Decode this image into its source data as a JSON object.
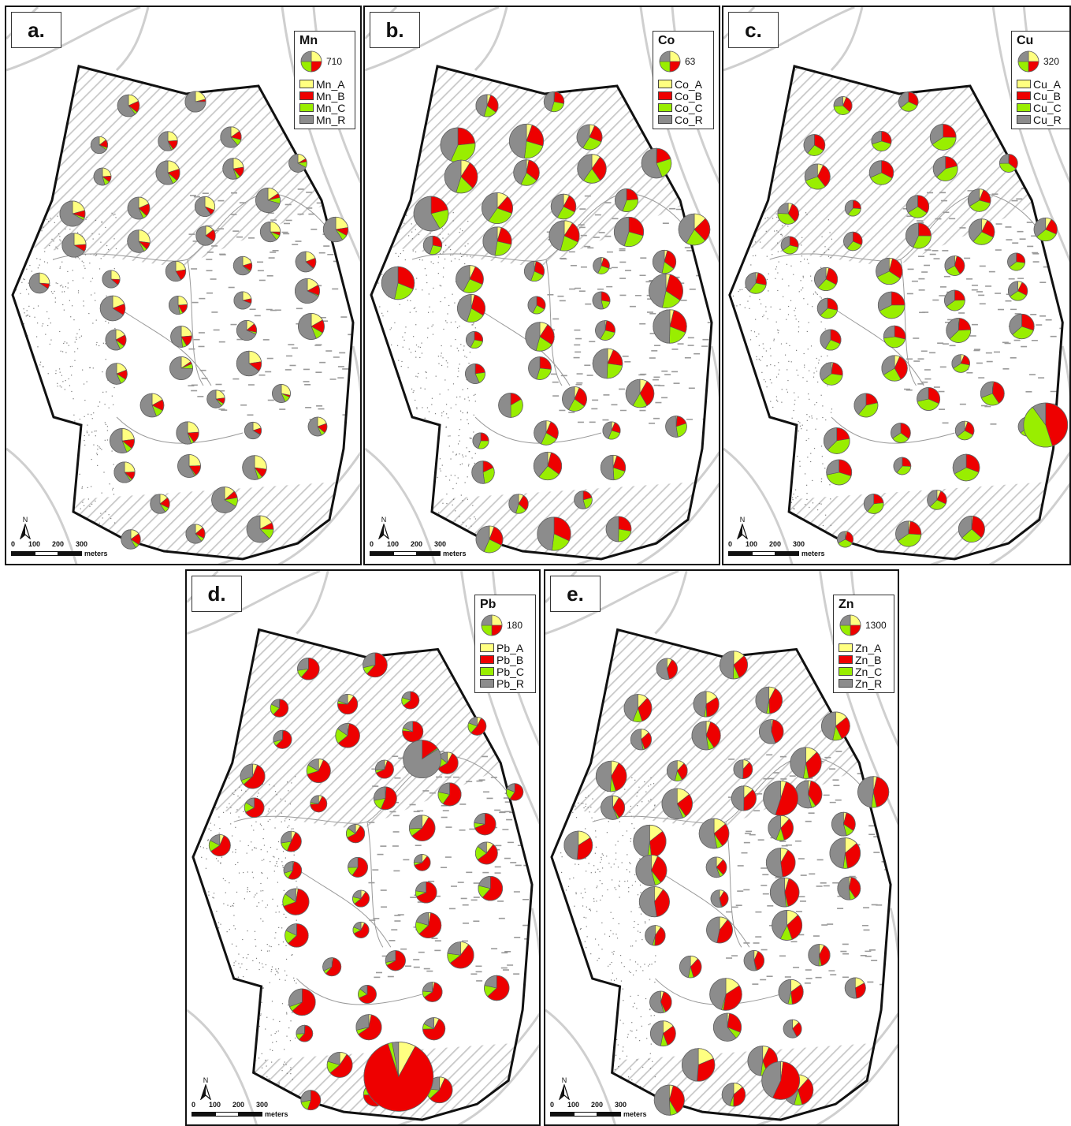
{
  "panels": [
    {
      "label": "a.",
      "element": "Mn",
      "ref_value": "710",
      "legend": [
        "Mn_A",
        "Mn_B",
        "Mn_C",
        "Mn_R"
      ]
    },
    {
      "label": "b.",
      "element": "Co",
      "ref_value": "63",
      "legend": [
        "Co_A",
        "Co_B",
        "Co_C",
        "Co_R"
      ]
    },
    {
      "label": "c.",
      "element": "Cu",
      "ref_value": "320",
      "legend": [
        "Cu_A",
        "Cu_B",
        "Cu_C",
        "Cu_R"
      ]
    },
    {
      "label": "d.",
      "element": "Pb",
      "ref_value": "180",
      "legend": [
        "Pb_A",
        "Pb_B",
        "Pb_C",
        "Pb_R"
      ]
    },
    {
      "label": "e.",
      "element": "Zn",
      "ref_value": "1300",
      "legend": [
        "Zn_A",
        "Zn_B",
        "Zn_C",
        "Zn_R"
      ]
    }
  ],
  "fraction_colors": {
    "A": "#ffff80",
    "B": "#ee0000",
    "C": "#99ee00",
    "R": "#8c8c8c"
  },
  "north_label": "N",
  "scale_bar": {
    "ticks": [
      "0",
      "100",
      "200",
      "300"
    ],
    "unit": "meters"
  }
}
